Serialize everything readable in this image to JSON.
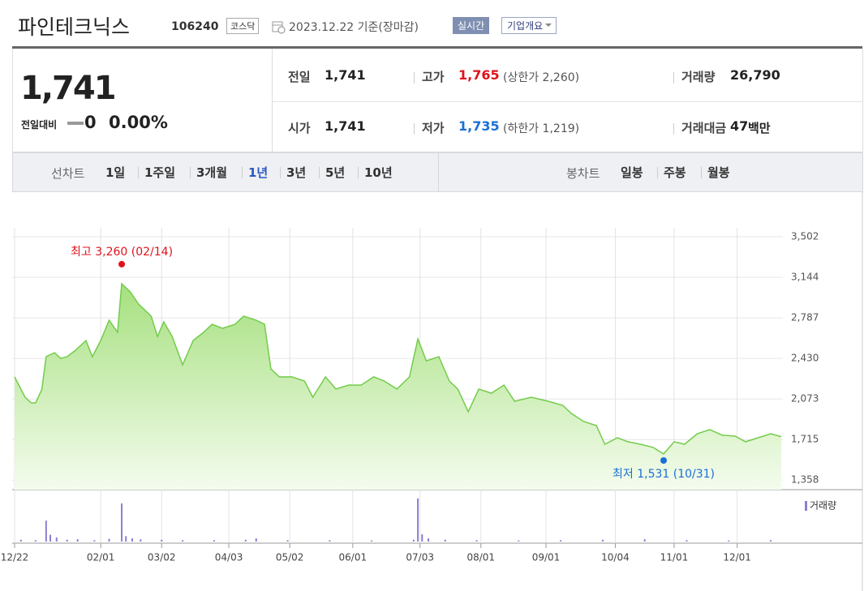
{
  "header": {
    "name": "파인테크닉스",
    "code": "106240",
    "market": "코스닥",
    "date": "2023.12.22 기준(장마감)",
    "realtime": "실시간",
    "company_info": "기업개요"
  },
  "quote": {
    "price": "1,741",
    "change_label": "전일대비",
    "change": "0",
    "change_rate": "0.00%",
    "stats": [
      {
        "label": "전일",
        "value": "1,741"
      },
      {
        "label": "고가",
        "value": "1,765",
        "limit": "(상한가 2,260)"
      },
      {
        "label": "거래량",
        "value": "26,790"
      },
      {
        "label": "시가",
        "value": "1,741"
      },
      {
        "label": "저가",
        "value": "1,735",
        "limit": "(하한가 1,219)"
      },
      {
        "label": "거래대금",
        "value": "47",
        "unit": "백만"
      }
    ]
  },
  "tabs": {
    "line_label": "선차트",
    "line_periods": [
      "1일",
      "1주일",
      "3개월",
      "1년",
      "3년",
      "5년",
      "10년"
    ],
    "selected": 3,
    "candle_label": "봉차트",
    "candle_periods": [
      "일봉",
      "주봉",
      "월봉"
    ]
  },
  "chart_data": {
    "type": "line",
    "color": "#72cc4a",
    "grid": true,
    "xlim": [
      0,
      365
    ],
    "ylim": [
      1274,
      3552
    ],
    "yticks": [
      {
        "value": 3502,
        "label": "3,502"
      },
      {
        "value": 3144,
        "label": "3,144"
      },
      {
        "value": 2787,
        "label": "2,787"
      },
      {
        "value": 2430,
        "label": "2,430"
      },
      {
        "value": 2073,
        "label": "2,073"
      },
      {
        "value": 1715,
        "label": "1,715"
      },
      {
        "value": 1358,
        "label": "1,358"
      }
    ],
    "xticks": [
      {
        "value": 0,
        "label": "12/22"
      },
      {
        "value": 41,
        "label": "02/01"
      },
      {
        "value": 70,
        "label": "03/02"
      },
      {
        "value": 102,
        "label": "04/03"
      },
      {
        "value": 131,
        "label": "05/02"
      },
      {
        "value": 161,
        "label": "06/01"
      },
      {
        "value": 193,
        "label": "07/03"
      },
      {
        "value": 222,
        "label": "08/01"
      },
      {
        "value": 253,
        "label": "09/01"
      },
      {
        "value": 286,
        "label": "10/04"
      },
      {
        "value": 314,
        "label": "11/01"
      },
      {
        "value": 344,
        "label": "12/01"
      }
    ],
    "x": [
      0,
      5,
      8,
      10,
      13,
      15,
      19,
      22,
      25,
      29,
      34,
      37,
      41,
      45,
      49,
      51,
      55,
      59,
      65,
      68,
      71,
      75,
      80,
      85,
      90,
      94,
      99,
      105,
      109,
      115,
      119,
      122,
      126,
      132,
      138,
      142,
      148,
      153,
      159,
      165,
      171,
      176,
      182,
      188,
      192,
      196,
      202,
      207,
      211,
      216,
      221,
      227,
      233,
      238,
      246,
      254,
      261,
      265,
      271,
      277,
      281,
      287,
      292,
      298,
      304,
      309,
      314,
      319,
      325,
      331,
      337,
      343,
      348,
      354,
      360,
      365
    ],
    "values": [
      2267,
      2088,
      2038,
      2038,
      2160,
      2445,
      2480,
      2430,
      2445,
      2502,
      2588,
      2445,
      2588,
      2767,
      2660,
      3088,
      3017,
      2909,
      2802,
      2624,
      2752,
      2624,
      2374,
      2588,
      2660,
      2731,
      2695,
      2731,
      2802,
      2767,
      2731,
      2338,
      2267,
      2267,
      2231,
      2088,
      2267,
      2160,
      2195,
      2195,
      2267,
      2231,
      2160,
      2267,
      2602,
      2409,
      2445,
      2231,
      2160,
      1960,
      2160,
      2124,
      2195,
      2053,
      2088,
      2053,
      2017,
      1946,
      1874,
      1838,
      1674,
      1731,
      1696,
      1674,
      1646,
      1589,
      1696,
      1674,
      1767,
      1803,
      1753,
      1746,
      1696,
      1731,
      1767,
      1741
    ],
    "annotations": [
      {
        "text": "최고 3,260 (02/14)",
        "x": 51,
        "value": 3260,
        "color": "#e0131b"
      },
      {
        "text": "최저 1,531 (10/31)",
        "x": 309,
        "value": 1531,
        "color": "#1a6fd6"
      }
    ],
    "volume": {
      "name": "거래량",
      "color": "#8a7fd2",
      "lim": [
        0,
        1000000
      ],
      "x": [
        3,
        10,
        15,
        17,
        20,
        25,
        30,
        38,
        45,
        51,
        53,
        56,
        60,
        70,
        80,
        95,
        110,
        115,
        130,
        150,
        170,
        190,
        192,
        194,
        197,
        205,
        220,
        240,
        260,
        280,
        300,
        320,
        340,
        360
      ],
      "values": [
        40000,
        30000,
        460000,
        150000,
        90000,
        40000,
        50000,
        30000,
        60000,
        840000,
        120000,
        70000,
        50000,
        40000,
        30000,
        30000,
        40000,
        70000,
        30000,
        30000,
        25000,
        40000,
        950000,
        160000,
        70000,
        40000,
        30000,
        25000,
        30000,
        40000,
        50000,
        30000,
        25000,
        30000
      ]
    }
  }
}
